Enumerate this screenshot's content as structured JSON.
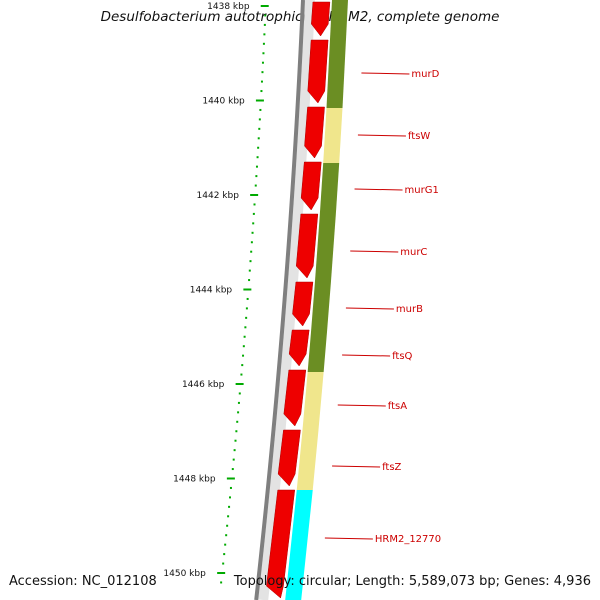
{
  "title": "Desulfobacterium autotrophicum HRM2, complete genome",
  "footer": {
    "accession": "Accession: NC_012108",
    "summary": "Topology: circular; Length: 5,589,073 bp; Genes: 4,936"
  },
  "colors": {
    "cds": "#ee0000",
    "backbone": "#7f7f7f",
    "scale_tick": "#00aa00",
    "label": "#cc0000",
    "band_dark_olive": "#6b8e23",
    "band_pale_yellow": "#f0e68c",
    "band_cyan": "#00ffff"
  },
  "scale": {
    "unit": "kbp",
    "labels": [
      "1438 kbp",
      "1440 kbp",
      "1442 kbp",
      "1444 kbp",
      "1446 kbp",
      "1448 kbp",
      "1450 kbp"
    ]
  },
  "genes": [
    {
      "name": "murD",
      "band": "band_dark_olive"
    },
    {
      "name": "ftsW",
      "band": "band_pale_yellow"
    },
    {
      "name": "murG1",
      "band": "band_dark_olive"
    },
    {
      "name": "murC",
      "band": "band_dark_olive"
    },
    {
      "name": "murB",
      "band": "band_dark_olive"
    },
    {
      "name": "ftsQ",
      "band": "band_dark_olive"
    },
    {
      "name": "ftsA",
      "band": "band_pale_yellow"
    },
    {
      "name": "ftsZ",
      "band": "band_pale_yellow"
    },
    {
      "name": "HRM2_12770",
      "band": "band_cyan"
    }
  ]
}
